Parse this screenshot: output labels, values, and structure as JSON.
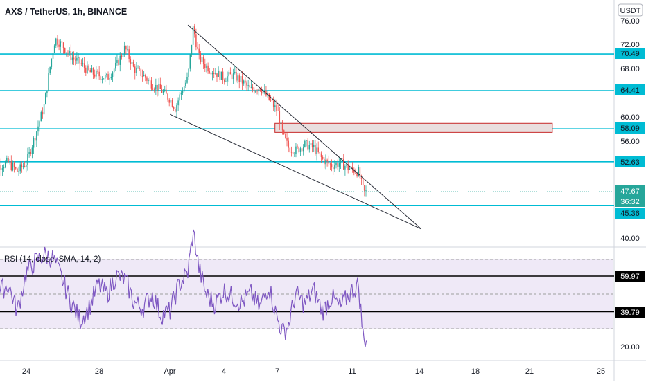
{
  "header": {
    "symbol_title": "AXS / TetherUS, 1h, BINANCE",
    "currency": "USDT"
  },
  "colors": {
    "up": "#26a69a",
    "down": "#ef5350",
    "hline": "#00bcd4",
    "trend": "#2a2e39",
    "rsi": "#7e57c2",
    "rsi_band": "#ede7f6",
    "zone_fill": "#e9dede",
    "zone_stroke": "#c62828",
    "last_price_bg": "#26a69a"
  },
  "price_scale": {
    "ticks": [
      "76.00",
      "72.00",
      "68.00",
      "60.00",
      "56.00",
      "40.00"
    ]
  },
  "rsi_scale": {
    "ticks": [
      "20.00"
    ]
  },
  "time_axis": {
    "labels": [
      "24",
      "28",
      "Apr",
      "4",
      "7",
      "11",
      "14",
      "18",
      "21",
      "25"
    ]
  },
  "rsi_panel": {
    "title": "RSI (14, close, SMA, 14, 2)",
    "levels": [
      "59.97",
      "39.79"
    ]
  },
  "last_price": {
    "price": "47.67",
    "countdown": "36:32"
  },
  "chart_data": {
    "type": "candlestick",
    "title": "AXS / TetherUS, 1h, BINANCE",
    "timeframe": "1h",
    "x_range": [
      "Mar 22",
      "Apr 26"
    ],
    "price_axis_range": [
      38.5,
      77.5
    ],
    "last_price": 47.67,
    "horizontal_levels": [
      70.49,
      64.41,
      58.09,
      52.63,
      45.36
    ],
    "resistance_zone": {
      "low": 57.5,
      "high": 59.0
    },
    "falling_wedge": {
      "upper_line": [
        [
          "Apr 2",
          75.3
        ],
        [
          "Apr 15",
          41.5
        ]
      ],
      "lower_line": [
        [
          "Apr 1",
          60.5
        ],
        [
          "Apr 15",
          41.5
        ]
      ]
    },
    "price_path": [
      [
        "Mar 22",
        51.5
      ],
      [
        "Mar 23",
        52.5
      ],
      [
        "Mar 23.5",
        51.0
      ],
      [
        "Mar 24",
        52.5
      ],
      [
        "Mar 24.5",
        57.0
      ],
      [
        "Mar 25",
        62.0
      ],
      [
        "Mar 25.3",
        68.0
      ],
      [
        "Mar 25.6",
        73.0
      ],
      [
        "Mar 26",
        72.0
      ],
      [
        "Mar 26.5",
        70.0
      ],
      [
        "Mar 27",
        69.0
      ],
      [
        "Mar 27.5",
        67.5
      ],
      [
        "Mar 28",
        67.0
      ],
      [
        "Mar 28.5",
        66.5
      ],
      [
        "Mar 29",
        68.5
      ],
      [
        "Mar 29.5",
        71.5
      ],
      [
        "Mar 30",
        68.0
      ],
      [
        "Mar 30.5",
        67.0
      ],
      [
        "Mar 31",
        65.5
      ],
      [
        "Mar 31.5",
        64.5
      ],
      [
        "Apr 1",
        63.0
      ],
      [
        "Apr 1.3",
        61.5
      ],
      [
        "Apr 1.6",
        64.0
      ],
      [
        "Apr 2",
        66.5
      ],
      [
        "Apr 2.3",
        75.0
      ],
      [
        "Apr 2.6",
        70.0
      ],
      [
        "Apr 3",
        68.5
      ],
      [
        "Apr 3.5",
        67.5
      ],
      [
        "Apr 4",
        66.5
      ],
      [
        "Apr 4.5",
        67.0
      ],
      [
        "Apr 5",
        66.0
      ],
      [
        "Apr 5.5",
        64.5
      ],
      [
        "Apr 6",
        65.0
      ],
      [
        "Apr 6.5",
        63.0
      ],
      [
        "Apr 7",
        61.0
      ],
      [
        "Apr 7.3",
        57.0
      ],
      [
        "Apr 7.6",
        55.0
      ],
      [
        "Apr 8",
        54.5
      ],
      [
        "Apr 8.5",
        55.5
      ],
      [
        "Apr 9",
        55.0
      ],
      [
        "Apr 9.5",
        53.0
      ],
      [
        "Apr 10",
        52.0
      ],
      [
        "Apr 10.5",
        52.5
      ],
      [
        "Apr 11",
        51.5
      ],
      [
        "Apr 11.5",
        51.0
      ],
      [
        "Apr 11.8",
        47.5
      ],
      [
        "Apr 12",
        47.67
      ]
    ],
    "rsi": {
      "name": "RSI (14, close, SMA, 14, 2)",
      "levels": [
        59.97,
        39.79
      ],
      "band": [
        30,
        70
      ],
      "axis_range": [
        15,
        85
      ],
      "path": [
        [
          "Mar 22",
          48
        ],
        [
          "Mar 23",
          55
        ],
        [
          "Mar 23.5",
          40
        ],
        [
          "Mar 24",
          62
        ],
        [
          "Mar 24.5",
          68
        ],
        [
          "Mar 25",
          72
        ],
        [
          "Mar 25.5",
          70
        ],
        [
          "Mar 26",
          58
        ],
        [
          "Mar 26.5",
          45
        ],
        [
          "Mar 27",
          35
        ],
        [
          "Mar 27.5",
          42
        ],
        [
          "Mar 28",
          55
        ],
        [
          "Mar 28.5",
          50
        ],
        [
          "Mar 29",
          60
        ],
        [
          "Mar 29.5",
          58
        ],
        [
          "Mar 30",
          45
        ],
        [
          "Mar 30.5",
          42
        ],
        [
          "Mar 31",
          50
        ],
        [
          "Mar 31.5",
          38
        ],
        [
          "Apr 1",
          40
        ],
        [
          "Apr 1.5",
          55
        ],
        [
          "Apr 2",
          62
        ],
        [
          "Apr 2.3",
          86
        ],
        [
          "Apr 2.6",
          65
        ],
        [
          "Apr 3",
          50
        ],
        [
          "Apr 3.5",
          44
        ],
        [
          "Apr 4",
          52
        ],
        [
          "Apr 4.5",
          48
        ],
        [
          "Apr 5",
          45
        ],
        [
          "Apr 5.5",
          50
        ],
        [
          "Apr 6",
          42
        ],
        [
          "Apr 6.5",
          55
        ],
        [
          "Apr 7",
          35
        ],
        [
          "Apr 7.3",
          28
        ],
        [
          "Apr 7.6",
          32
        ],
        [
          "Apr 8",
          50
        ],
        [
          "Apr 8.5",
          44
        ],
        [
          "Apr 9",
          52
        ],
        [
          "Apr 9.5",
          40
        ],
        [
          "Apr 10",
          48
        ],
        [
          "Apr 10.5",
          42
        ],
        [
          "Apr 11",
          50
        ],
        [
          "Apr 11.5",
          55
        ],
        [
          "Apr 11.8",
          22
        ],
        [
          "Apr 12",
          28
        ]
      ]
    }
  }
}
